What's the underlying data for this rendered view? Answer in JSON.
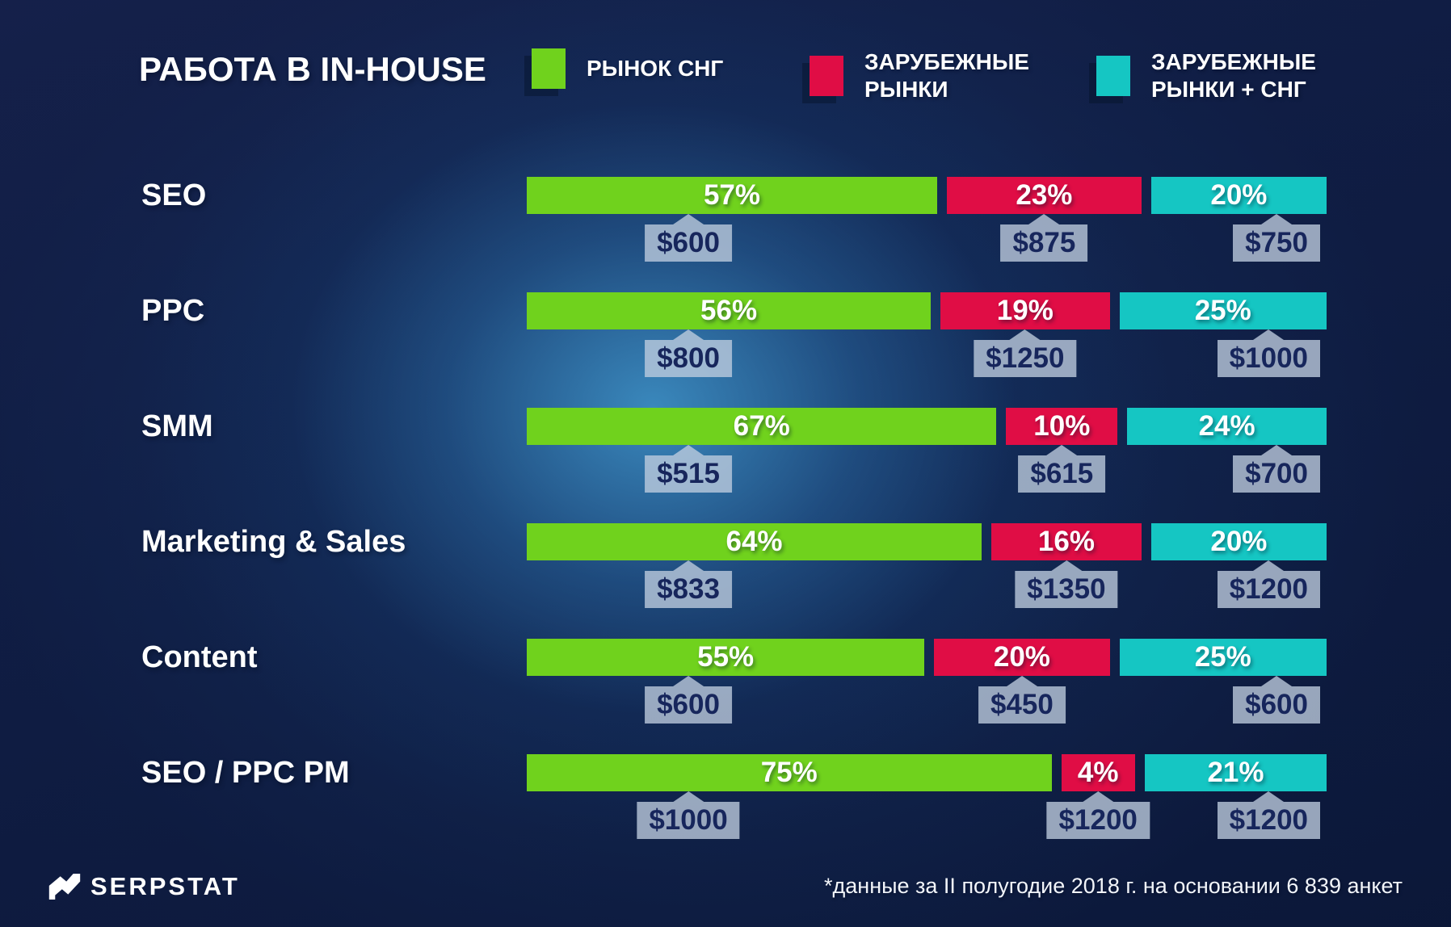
{
  "title": "РАБОТА В IN-HOUSE",
  "legend": {
    "items": [
      {
        "label": "РЫНОК СНГ",
        "color": "#70d21d"
      },
      {
        "label": "ЗАРУБЕЖНЫЕ\nРЫНКИ",
        "color": "#e00d45"
      },
      {
        "label": "ЗАРУБЕЖНЫЕ\nРЫНКИ + СНГ",
        "color": "#15c6c3"
      }
    ]
  },
  "chart_data": {
    "type": "bar",
    "orientation": "horizontal",
    "stacked": true,
    "title": "РАБОТА В IN-HOUSE",
    "value_unit": "percent of respondents",
    "label_unit": "USD median salary",
    "categories": [
      "SEO",
      "PPC",
      "SMM",
      "Marketing & Sales",
      "Content",
      "SEO / PPC PM"
    ],
    "series": [
      {
        "name": "РЫНОК СНГ",
        "color": "#70d21d",
        "values": [
          57,
          56,
          67,
          64,
          55,
          75
        ],
        "salaries": [
          "$600",
          "$800",
          "$515",
          "$833",
          "$600",
          "$1000"
        ]
      },
      {
        "name": "ЗАРУБЕЖНЫЕ РЫНКИ",
        "color": "#e00d45",
        "values": [
          23,
          19,
          10,
          16,
          20,
          4
        ],
        "salaries": [
          "$875",
          "$1250",
          "$615",
          "$1350",
          "$450",
          "$1200"
        ]
      },
      {
        "name": "ЗАРУБЕЖНЫЕ РЫНКИ + СНГ",
        "color": "#15c6c3",
        "values": [
          20,
          25,
          24,
          20,
          25,
          21
        ],
        "salaries": [
          "$750",
          "$1000",
          "$700",
          "$1200",
          "$600",
          "$1200"
        ]
      }
    ],
    "legend_position": "top",
    "footnote": "*данные за II полугодие 2018 г. на основании 6 839 анкет"
  },
  "tag_style": {
    "bg": "rgba(191,205,223,0.78)",
    "text": "#17265c"
  },
  "footer": {
    "brand": "SERPSTAT",
    "note": "*данные за II полугодие 2018 г. на основании 6 839 анкет"
  }
}
